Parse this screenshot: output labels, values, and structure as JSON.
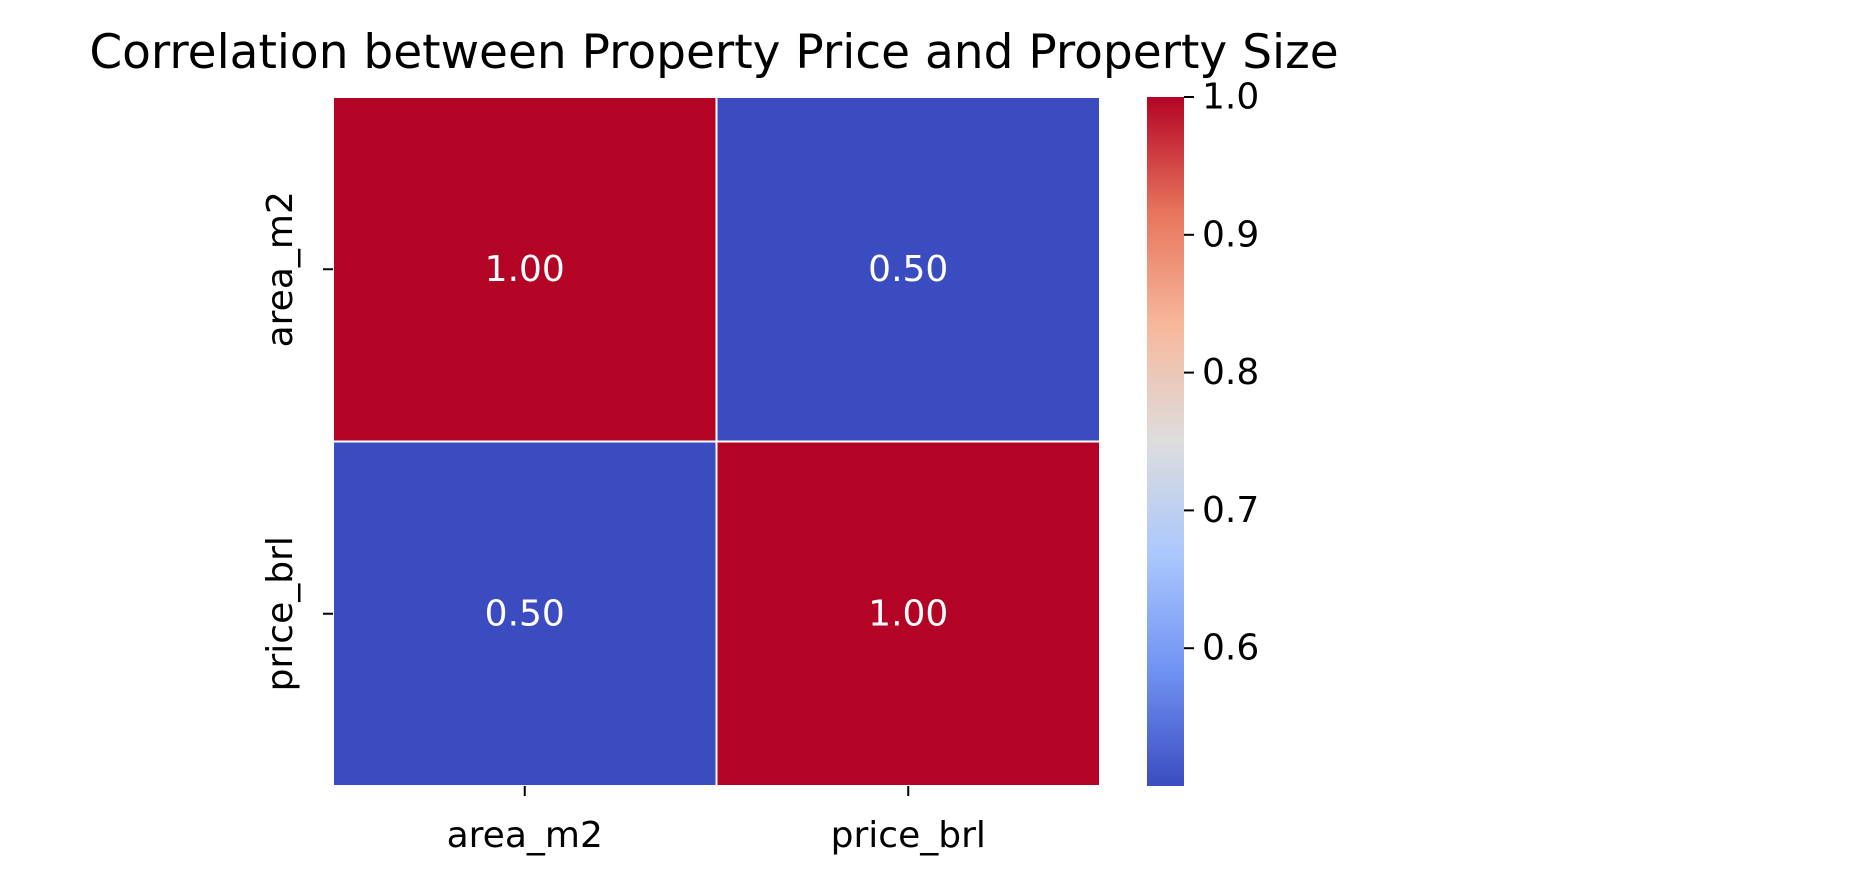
{
  "chart_data": {
    "type": "heatmap",
    "title": "Correlation between Property Price and Property Size",
    "xlabel": "",
    "ylabel": "",
    "x_categories": [
      "area_m2",
      "price_brl"
    ],
    "y_categories": [
      "area_m2",
      "price_brl"
    ],
    "values": [
      [
        1.0,
        0.5
      ],
      [
        0.5,
        1.0
      ]
    ],
    "cell_labels": [
      [
        "1.00",
        "0.50"
      ],
      [
        "0.50",
        "1.00"
      ]
    ],
    "colormap": "coolwarm",
    "colormap_stops": [
      "#3b4cc0",
      "#7092f3",
      "#aac7fd",
      "#dddddd",
      "#f7b89c",
      "#e7745b",
      "#b40426"
    ],
    "annotation_color": "#ffffff",
    "gridline_color": "#ffffff",
    "colorbar": {
      "range": [
        0.5,
        1.0
      ],
      "ticks": [
        0.6,
        0.7,
        0.8,
        0.9,
        1.0
      ],
      "tick_labels": [
        "0.6",
        "0.7",
        "0.8",
        "0.9",
        "1.0"
      ]
    }
  }
}
